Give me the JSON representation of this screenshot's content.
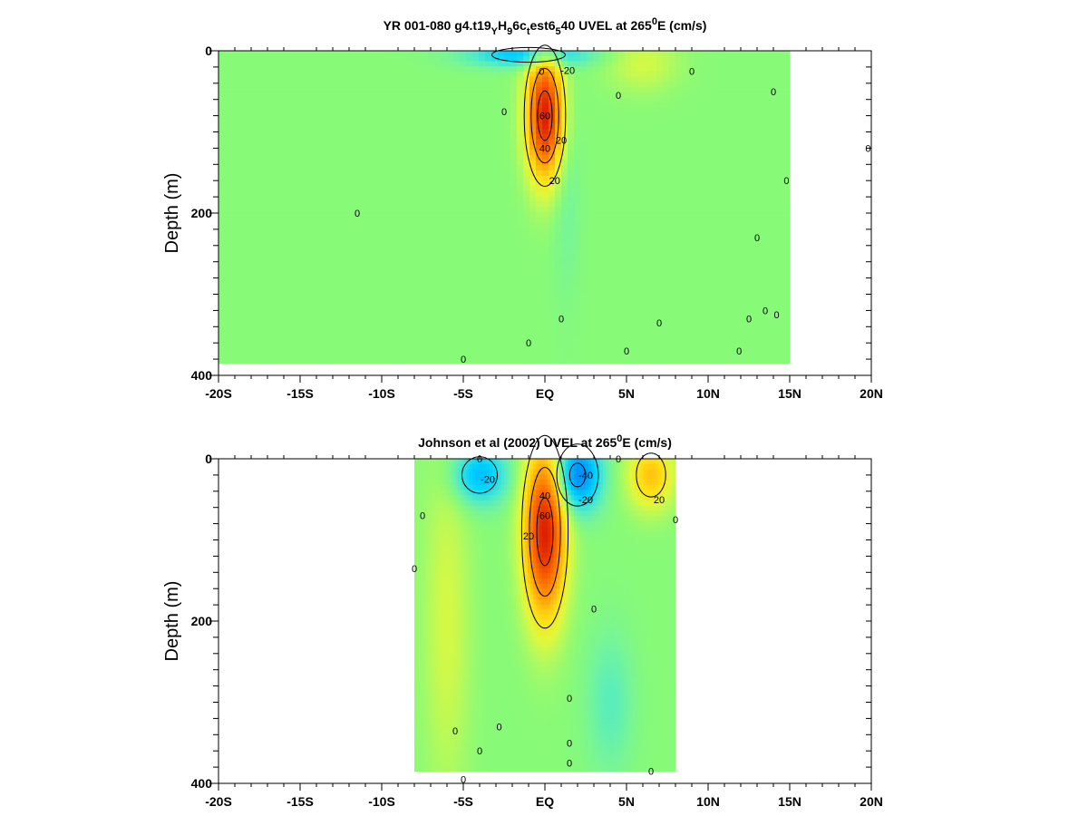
{
  "chart_data": [
    {
      "type": "heatmap",
      "title": {
        "pre": "YR 001-080 g4.t19",
        "sub1": "Y",
        "mid1": "H",
        "sub2": "9",
        "mid2": "6c",
        "sub3": "t",
        "mid3": "est6",
        "sub4": "5",
        "mid4": "40 UVEL at 265",
        "sup": "0",
        "post": "E (cm/s)"
      },
      "ylabel": "Depth (m)",
      "xlim": [
        -20,
        20
      ],
      "ylim": [
        0,
        400
      ],
      "xticks": [
        {
          "value": -20,
          "label": "-20S"
        },
        {
          "value": -15,
          "label": "-15S"
        },
        {
          "value": -10,
          "label": "-10S"
        },
        {
          "value": -5,
          "label": "-5S"
        },
        {
          "value": 0,
          "label": "EQ"
        },
        {
          "value": 5,
          "label": "5N"
        },
        {
          "value": 10,
          "label": "10N"
        },
        {
          "value": 15,
          "label": "15N"
        },
        {
          "value": 20,
          "label": "20N"
        }
      ],
      "yticks": [
        {
          "value": 0,
          "label": "0"
        },
        {
          "value": 200,
          "label": "200"
        },
        {
          "value": 400,
          "label": "400"
        }
      ],
      "data_extent": {
        "lat": [
          -20,
          15
        ],
        "depth": [
          0,
          385
        ]
      },
      "features": [
        {
          "kind": "max",
          "lat": 0.0,
          "depth": 80,
          "value": 70,
          "wlat": 0.8,
          "wdepth": 55
        },
        {
          "kind": "min",
          "lat": -1.0,
          "depth": 5,
          "value": -30,
          "wlat": 2.5,
          "wdepth": 10
        },
        {
          "kind": "max",
          "lat": 6.0,
          "depth": 15,
          "value": 12,
          "wlat": 1.5,
          "wdepth": 25
        },
        {
          "kind": "min",
          "lat": 1.3,
          "depth": 150,
          "value": -6,
          "wlat": 0.6,
          "wdepth": 100
        }
      ],
      "contour_levels": [
        -40,
        -20,
        0,
        20,
        40,
        60
      ],
      "contour_labels": [
        {
          "lat": 1.4,
          "depth": 24,
          "text": "-20"
        },
        {
          "lat": 0.0,
          "depth": 80,
          "text": "60"
        },
        {
          "lat": 0.0,
          "depth": 120,
          "text": "40"
        },
        {
          "lat": 1.0,
          "depth": 110,
          "text": "20"
        },
        {
          "lat": 0.6,
          "depth": 160,
          "text": "20"
        },
        {
          "lat": -2.5,
          "depth": 75,
          "text": "0"
        },
        {
          "lat": -0.2,
          "depth": 25,
          "text": "0"
        },
        {
          "lat": 4.5,
          "depth": 55,
          "text": "0"
        },
        {
          "lat": 9.0,
          "depth": 25,
          "text": "0"
        },
        {
          "lat": 14.0,
          "depth": 50,
          "text": "0"
        },
        {
          "lat": 14.8,
          "depth": 160,
          "text": "0"
        },
        {
          "lat": 19.8,
          "depth": 120,
          "text": "0"
        },
        {
          "lat": -11.5,
          "depth": 200,
          "text": "0"
        },
        {
          "lat": -5.0,
          "depth": 380,
          "text": "0"
        },
        {
          "lat": -1.0,
          "depth": 360,
          "text": "0"
        },
        {
          "lat": 1.0,
          "depth": 330,
          "text": "0"
        },
        {
          "lat": 5.0,
          "depth": 370,
          "text": "0"
        },
        {
          "lat": 7.0,
          "depth": 335,
          "text": "0"
        },
        {
          "lat": 11.9,
          "depth": 370,
          "text": "0"
        },
        {
          "lat": 12.5,
          "depth": 330,
          "text": "0"
        },
        {
          "lat": 13.0,
          "depth": 230,
          "text": "0"
        },
        {
          "lat": 14.2,
          "depth": 325,
          "text": "0"
        },
        {
          "lat": 13.5,
          "depth": 320,
          "text": "0"
        }
      ]
    },
    {
      "type": "heatmap",
      "title": {
        "pre": "Johnson et al (2002) UVEL at 265",
        "sup": "0",
        "post": "E (cm/s)"
      },
      "ylabel": "Depth (m)",
      "xlim": [
        -20,
        20
      ],
      "ylim": [
        0,
        400
      ],
      "xticks": [
        {
          "value": -20,
          "label": "-20S"
        },
        {
          "value": -15,
          "label": "-15S"
        },
        {
          "value": -10,
          "label": "-10S"
        },
        {
          "value": -5,
          "label": "-5S"
        },
        {
          "value": 0,
          "label": "EQ"
        },
        {
          "value": 5,
          "label": "5N"
        },
        {
          "value": 10,
          "label": "10N"
        },
        {
          "value": 15,
          "label": "15N"
        },
        {
          "value": 20,
          "label": "20N"
        }
      ],
      "yticks": [
        {
          "value": 0,
          "label": "0"
        },
        {
          "value": 200,
          "label": "200"
        },
        {
          "value": 400,
          "label": "400"
        }
      ],
      "data_extent": {
        "lat": [
          -8,
          8
        ],
        "depth": [
          0,
          385
        ]
      },
      "features": [
        {
          "kind": "max",
          "lat": 0.0,
          "depth": 90,
          "value": 70,
          "wlat": 0.9,
          "wdepth": 75
        },
        {
          "kind": "min",
          "lat": 2.0,
          "depth": 20,
          "value": -45,
          "wlat": 1.0,
          "wdepth": 30
        },
        {
          "kind": "min",
          "lat": -4.0,
          "depth": 20,
          "value": -30,
          "wlat": 1.2,
          "wdepth": 25
        },
        {
          "kind": "max",
          "lat": 6.5,
          "depth": 20,
          "value": 30,
          "wlat": 1.0,
          "wdepth": 30
        },
        {
          "kind": "max",
          "lat": -6.0,
          "depth": 200,
          "value": 12,
          "wlat": 1.0,
          "wdepth": 150
        },
        {
          "kind": "min",
          "lat": 4.0,
          "depth": 300,
          "value": -10,
          "wlat": 1.0,
          "wdepth": 60
        }
      ],
      "contour_levels": [
        -40,
        -20,
        0,
        20,
        40,
        60
      ],
      "contour_labels": [
        {
          "lat": 2.5,
          "depth": 20,
          "text": "-40"
        },
        {
          "lat": 2.5,
          "depth": 50,
          "text": "-20"
        },
        {
          "lat": -3.5,
          "depth": 25,
          "text": "-20"
        },
        {
          "lat": 0.0,
          "depth": 45,
          "text": "40"
        },
        {
          "lat": 0.0,
          "depth": 70,
          "text": "60"
        },
        {
          "lat": -1.0,
          "depth": 95,
          "text": "20"
        },
        {
          "lat": 7.0,
          "depth": 50,
          "text": "20"
        },
        {
          "lat": -4.0,
          "depth": 0,
          "text": "0"
        },
        {
          "lat": -7.5,
          "depth": 70,
          "text": "0"
        },
        {
          "lat": -8.0,
          "depth": 135,
          "text": "0"
        },
        {
          "lat": 3.0,
          "depth": 185,
          "text": "0"
        },
        {
          "lat": 8.0,
          "depth": 75,
          "text": "0"
        },
        {
          "lat": 4.5,
          "depth": 0,
          "text": "0"
        },
        {
          "lat": 1.5,
          "depth": 295,
          "text": "0"
        },
        {
          "lat": -5.5,
          "depth": 335,
          "text": "0"
        },
        {
          "lat": -2.8,
          "depth": 330,
          "text": "0"
        },
        {
          "lat": -4.0,
          "depth": 360,
          "text": "0"
        },
        {
          "lat": 1.5,
          "depth": 350,
          "text": "0"
        },
        {
          "lat": 1.5,
          "depth": 375,
          "text": "0"
        },
        {
          "lat": 6.5,
          "depth": 385,
          "text": "0"
        },
        {
          "lat": -5.0,
          "depth": 395,
          "text": "0"
        }
      ]
    }
  ]
}
